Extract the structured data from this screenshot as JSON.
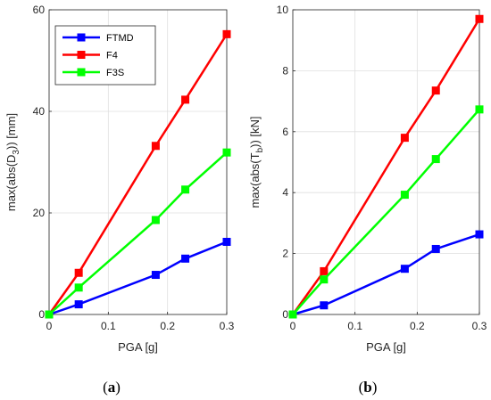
{
  "chart_data": [
    {
      "type": "line",
      "caption": "(a)",
      "caption_letter": "a",
      "xlabel": "PGA [g]",
      "ylabel": "max(abs(D3)) [mm]",
      "ylabel_parts": {
        "prefix": "max(abs(D",
        "sub": "3",
        "suffix": ")) [mm]"
      },
      "xlim": [
        0,
        0.3
      ],
      "ylim": [
        0,
        60
      ],
      "xticks": [
        "0",
        "0.1",
        "0.2",
        "0.3"
      ],
      "xtick_values": [
        0,
        0.1,
        0.2,
        0.3
      ],
      "yticks": [
        "0",
        "20",
        "40",
        "60"
      ],
      "ytick_values": [
        0,
        20,
        40,
        60
      ],
      "grid": true,
      "legend_position": "top-left",
      "x": [
        0,
        0.05,
        0.18,
        0.23,
        0.3
      ],
      "series": [
        {
          "name": "FTMD",
          "color": "#0000ff",
          "values": [
            0,
            2.0,
            7.8,
            11.0,
            14.3
          ]
        },
        {
          "name": "F4",
          "color": "#ff0000",
          "values": [
            0,
            8.2,
            33.2,
            42.3,
            55.2
          ]
        },
        {
          "name": "F3S",
          "color": "#00ff00",
          "values": [
            0,
            5.3,
            18.6,
            24.6,
            31.9
          ]
        }
      ]
    },
    {
      "type": "line",
      "caption": "(b)",
      "caption_letter": "b",
      "xlabel": "PGA [g]",
      "ylabel": "max(abs(Tb)) [kN]",
      "ylabel_parts": {
        "prefix": "max(abs(T",
        "sub": "b",
        "suffix": ")) [kN]"
      },
      "xlim": [
        0,
        0.3
      ],
      "ylim": [
        0,
        10
      ],
      "xticks": [
        "0",
        "0.1",
        "0.2",
        "0.3"
      ],
      "xtick_values": [
        0,
        0.1,
        0.2,
        0.3
      ],
      "yticks": [
        "0",
        "2",
        "4",
        "6",
        "8",
        "10"
      ],
      "ytick_values": [
        0,
        2,
        4,
        6,
        8,
        10
      ],
      "grid": true,
      "legend_position": "none",
      "x": [
        0,
        0.05,
        0.18,
        0.23,
        0.3
      ],
      "series": [
        {
          "name": "FTMD",
          "color": "#0000ff",
          "values": [
            0,
            0.3,
            1.5,
            2.15,
            2.63
          ]
        },
        {
          "name": "F4",
          "color": "#ff0000",
          "values": [
            0,
            1.42,
            5.8,
            7.35,
            9.7
          ]
        },
        {
          "name": "F3S",
          "color": "#00ff00",
          "values": [
            0,
            1.15,
            3.93,
            5.1,
            6.73
          ]
        }
      ]
    }
  ]
}
